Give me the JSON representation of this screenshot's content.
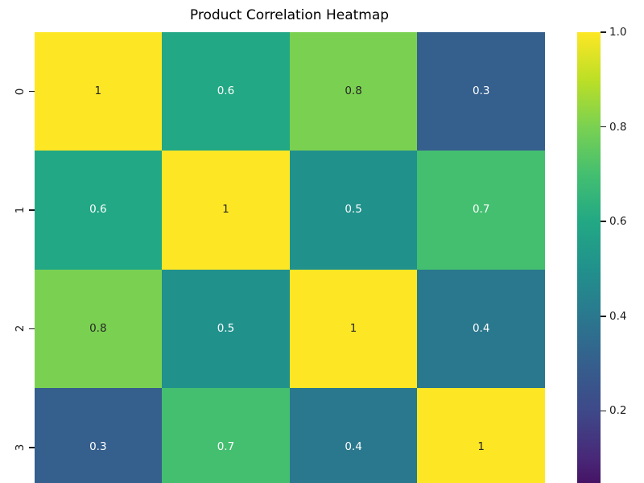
{
  "chart_data": {
    "type": "heatmap",
    "title": "Product Correlation Heatmap",
    "colormap": "viridis",
    "row_tick_labels": [
      "0",
      "1",
      "2",
      "3"
    ],
    "matrix": [
      [
        1,
        0.6,
        0.8,
        0.3
      ],
      [
        0.6,
        1,
        0.5,
        0.7
      ],
      [
        0.8,
        0.5,
        1,
        0.4
      ],
      [
        0.3,
        0.7,
        0.4,
        1
      ]
    ],
    "cell_labels": [
      [
        "1",
        "0.6",
        "0.8",
        "0.3"
      ],
      [
        "0.6",
        "1",
        "0.5",
        "0.7"
      ],
      [
        "0.8",
        "0.5",
        "1",
        "0.4"
      ],
      [
        "0.3",
        "0.7",
        "0.4",
        "1"
      ]
    ],
    "value_styles": {
      "1": {
        "bg": "#fde725",
        "text": "dark"
      },
      "0.8": {
        "bg": "#7ad151",
        "text": "dark"
      },
      "0.7": {
        "bg": "#44bf70",
        "text": "light"
      },
      "0.6": {
        "bg": "#22a884",
        "text": "light"
      },
      "0.5": {
        "bg": "#21918c",
        "text": "light"
      },
      "0.4": {
        "bg": "#2a788e",
        "text": "light"
      },
      "0.3": {
        "bg": "#355f8d",
        "text": "light"
      }
    },
    "text_colors": {
      "dark": "#262626",
      "light": "#ffffff"
    },
    "colorbar": {
      "vmin": 0,
      "vmax": 1,
      "tick_labels": [
        "1.0",
        "0.8",
        "0.6",
        "0.4",
        "0.2"
      ],
      "tick_values": [
        1.0,
        0.8,
        0.6,
        0.4,
        0.2
      ],
      "gradient_stops_bottom_to_top": [
        "#440154",
        "#482878",
        "#3e4989",
        "#355f8d",
        "#2a788e",
        "#21918c",
        "#22a884",
        "#44bf70",
        "#7ad151",
        "#bddf26",
        "#fde725"
      ]
    }
  }
}
